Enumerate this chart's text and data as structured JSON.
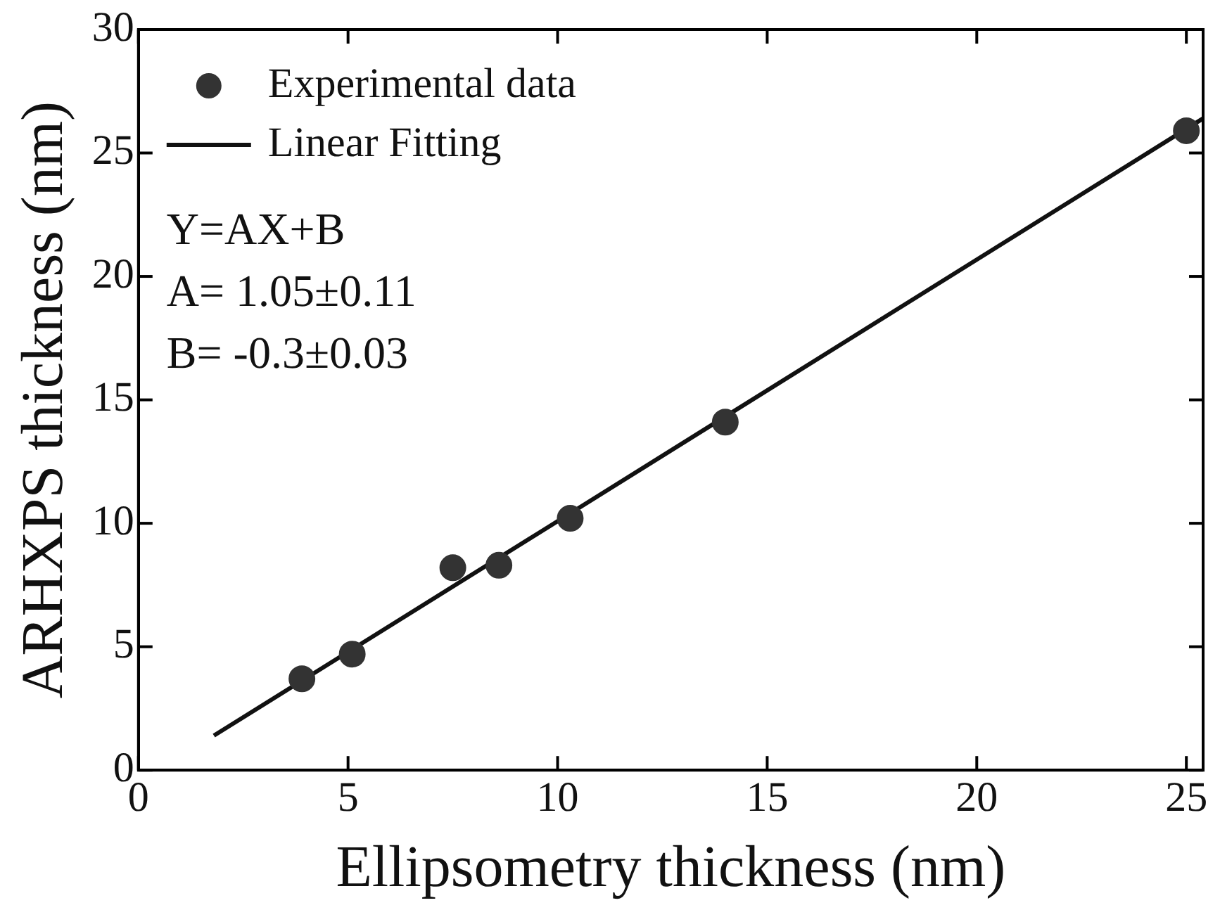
{
  "chart_data": {
    "type": "scatter",
    "xlabel": "Ellipsometry thickness (nm)",
    "ylabel": "ARHXPS thickness (nm)",
    "xlim": [
      0,
      25.4
    ],
    "xticks": [
      0,
      5,
      10,
      15,
      20,
      25
    ],
    "ylim": [
      0,
      30
    ],
    "yticks": [
      0,
      5,
      10,
      15,
      20,
      25,
      30
    ],
    "grid": false,
    "legend": "top left",
    "marker": "circle",
    "annotations": [
      "Y=AX+B",
      "A= 1.05±0.11",
      "B= -0.3±0.03"
    ],
    "series": [
      {
        "name": "Experimental data",
        "type": "scatter",
        "color": "#333333",
        "x": [
          3.9,
          5.1,
          7.5,
          8.6,
          10.3,
          14,
          25
        ],
        "values": [
          3.7,
          4.7,
          8.2,
          8.3,
          10.2,
          14.1,
          25.9
        ]
      },
      {
        "name": "Linear Fitting",
        "type": "line",
        "color": "#111111",
        "line_style": "solid",
        "marker": "none",
        "x": [
          1.8,
          25.4
        ],
        "values": [
          1.4,
          26.4
        ]
      }
    ]
  }
}
